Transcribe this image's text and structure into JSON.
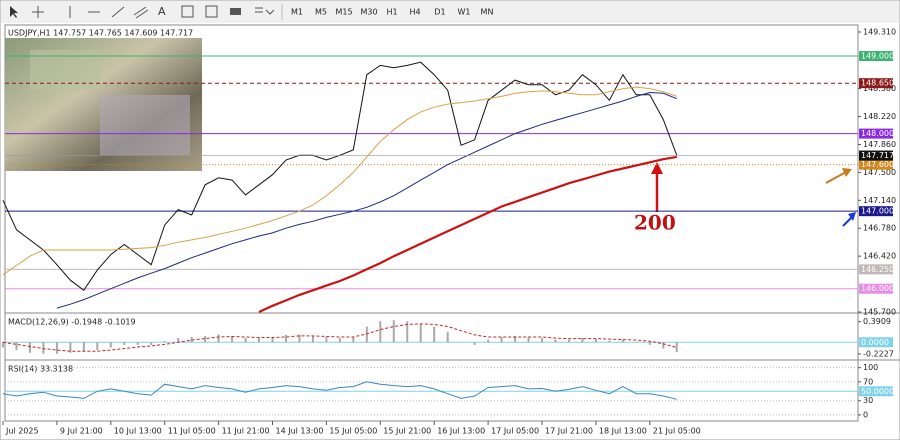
{
  "toolbar": {
    "timeframes": [
      "M1",
      "M5",
      "M15",
      "M30",
      "H1",
      "H4",
      "D1",
      "W1",
      "MN"
    ]
  },
  "chart_data": [
    {
      "type": "line",
      "header": "USDJPY,H1  147.757 147.765 147.609 147.717",
      "categories": [
        "Jul 2025",
        null,
        null,
        null,
        "9 Jul 21:00",
        null,
        null,
        null,
        "10 Jul 13:00",
        null,
        null,
        null,
        "11 Jul 05:00",
        null,
        null,
        null,
        "11 Jul 21:00",
        null,
        null,
        null,
        "14 Jul 13:00",
        null,
        null,
        null,
        "15 Jul 05:00",
        null,
        null,
        null,
        "15 Jul 21:00",
        null,
        null,
        null,
        "16 Jul 13:00",
        null,
        null,
        null,
        "17 Jul 05:00",
        null,
        null,
        null,
        "17 Jul 21:00",
        null,
        null,
        null,
        "18 Jul 13:00",
        null,
        null,
        null,
        "21 Jul 05:00",
        null,
        null
      ],
      "series": [
        {
          "color": "#111111",
          "values": [
            147.14,
            146.76,
            146.63,
            146.5,
            146.31,
            146.11,
            145.98,
            146.24,
            146.44,
            146.57,
            146.44,
            146.31,
            146.82,
            147.02,
            146.95,
            147.34,
            147.43,
            147.4,
            147.21,
            147.34,
            147.47,
            147.66,
            147.72,
            147.72,
            147.66,
            147.72,
            147.79,
            148.76,
            148.88,
            148.85,
            148.88,
            148.92,
            148.76,
            148.56,
            147.85,
            147.92,
            148.43,
            148.56,
            148.69,
            148.63,
            148.63,
            148.5,
            148.56,
            148.76,
            148.63,
            148.43,
            148.76,
            148.5,
            148.5,
            148.18,
            147.72
          ]
        },
        {
          "color": "#d9a04a",
          "values": [
            146.18,
            146.3,
            146.42,
            146.5,
            146.5,
            146.5,
            146.5,
            146.5,
            146.5,
            146.51,
            146.52,
            146.53,
            146.56,
            146.6,
            146.63,
            146.66,
            146.7,
            146.74,
            146.78,
            146.83,
            146.88,
            146.94,
            147.0,
            147.08,
            147.2,
            147.34,
            147.5,
            147.7,
            147.9,
            148.05,
            148.18,
            148.28,
            148.34,
            148.38,
            148.4,
            148.42,
            148.45,
            148.48,
            148.52,
            148.54,
            148.55,
            148.54,
            148.52,
            148.5,
            148.5,
            148.54,
            148.58,
            148.6,
            148.58,
            148.54,
            148.48
          ]
        },
        {
          "color": "#1c2a80",
          "values": [
            null,
            null,
            null,
            null,
            145.75,
            145.8,
            145.86,
            145.93,
            146.0,
            146.07,
            146.14,
            146.2,
            146.26,
            146.33,
            146.4,
            146.46,
            146.52,
            146.58,
            146.63,
            146.68,
            146.72,
            146.78,
            146.83,
            146.87,
            146.92,
            146.96,
            147.0,
            147.05,
            147.12,
            147.2,
            147.3,
            147.4,
            147.5,
            147.6,
            147.68,
            147.76,
            147.84,
            147.92,
            148.0,
            148.06,
            148.12,
            148.17,
            148.22,
            148.27,
            148.32,
            148.37,
            148.42,
            148.48,
            148.53,
            148.52,
            148.45
          ]
        },
        {
          "color": "#cc1111",
          "values": [
            null,
            null,
            null,
            null,
            null,
            null,
            null,
            null,
            null,
            null,
            null,
            null,
            null,
            null,
            null,
            null,
            null,
            null,
            null,
            145.7,
            145.78,
            145.85,
            145.92,
            145.98,
            146.04,
            146.1,
            146.17,
            146.25,
            146.33,
            146.42,
            146.5,
            146.58,
            146.66,
            146.74,
            146.82,
            146.9,
            146.98,
            147.06,
            147.12,
            147.18,
            147.24,
            147.3,
            147.36,
            147.41,
            147.46,
            147.51,
            147.55,
            147.59,
            147.63,
            147.67,
            147.7
          ]
        }
      ],
      "ylim": [
        145.7,
        149.31
      ],
      "yticks": [
        {
          "value": 149.31,
          "label": "149.310"
        },
        {
          "value": 148.58,
          "label": "148.580"
        },
        {
          "value": 148.22,
          "label": "148.220"
        },
        {
          "value": 147.86,
          "label": "147.860"
        },
        {
          "value": 147.5,
          "label": "147.500"
        },
        {
          "value": 147.14,
          "label": "147.140"
        },
        {
          "value": 146.78,
          "label": "146.780"
        },
        {
          "value": 146.42,
          "label": "146.420"
        },
        {
          "value": 145.7,
          "label": "145.700"
        }
      ],
      "levels": [
        {
          "value": 149.0,
          "label": "149.000",
          "color": "#3cb371",
          "style": "solid"
        },
        {
          "value": 148.65,
          "label": "148.650",
          "color": "#8b1a1a",
          "style": "dashed"
        },
        {
          "value": 148.0,
          "label": "148.000",
          "color": "#8a2be2",
          "style": "solid"
        },
        {
          "value": 147.6,
          "label": "147.600",
          "color": "#d2881e",
          "style": "dotted"
        },
        {
          "value": 147.0,
          "label": "147.000",
          "color": "#1a1a8c",
          "style": "solid"
        },
        {
          "value": 146.25,
          "label": "146.250",
          "color": "#c0b8b8",
          "style": "solid"
        },
        {
          "value": 146.0,
          "label": "146.000",
          "color": "#e88de8",
          "style": "solid"
        }
      ],
      "current_price": {
        "value": 147.717,
        "label": "147.717"
      },
      "annotation": "200"
    },
    {
      "type": "bar",
      "title": "MACD(12,26,9) -0.1948 -0.1019",
      "color": "#a8a8a8",
      "values": [
        -0.1,
        -0.15,
        -0.2,
        -0.22,
        -0.22,
        -0.2,
        -0.18,
        -0.15,
        -0.1,
        -0.05,
        -0.05,
        -0.05,
        0.02,
        0.08,
        0.1,
        0.12,
        0.15,
        0.12,
        0.08,
        0.08,
        0.1,
        0.14,
        0.15,
        0.12,
        0.1,
        0.08,
        0.1,
        0.3,
        0.4,
        0.42,
        0.4,
        0.35,
        0.3,
        0.2,
        0.0,
        -0.05,
        0.05,
        0.1,
        0.12,
        0.1,
        0.08,
        0.05,
        0.05,
        0.08,
        0.06,
        0.03,
        0.05,
        0.0,
        -0.05,
        -0.12,
        -0.19
      ],
      "signal": {
        "color": "#d02020",
        "values": [
          0.0,
          -0.04,
          -0.08,
          -0.12,
          -0.15,
          -0.17,
          -0.17,
          -0.17,
          -0.15,
          -0.12,
          -0.09,
          -0.07,
          -0.04,
          0.0,
          0.04,
          0.07,
          0.1,
          0.11,
          0.1,
          0.09,
          0.09,
          0.1,
          0.12,
          0.12,
          0.11,
          0.1,
          0.1,
          0.16,
          0.24,
          0.3,
          0.34,
          0.35,
          0.34,
          0.3,
          0.22,
          0.14,
          0.1,
          0.1,
          0.1,
          0.1,
          0.1,
          0.08,
          0.07,
          0.07,
          0.07,
          0.06,
          0.05,
          0.04,
          0.02,
          -0.03,
          -0.1
        ]
      },
      "ylim": [
        -0.3,
        0.5
      ],
      "yticks": [
        0.3909,
        -0.2227
      ],
      "levels": [
        {
          "value": 0,
          "label": "0.0000",
          "color": "#7fd3e8",
          "style": "solid"
        }
      ]
    },
    {
      "type": "line",
      "title": "RSI(14) 33.3138",
      "color": "#3a86c0",
      "values": [
        45,
        40,
        45,
        48,
        40,
        38,
        35,
        50,
        55,
        50,
        45,
        42,
        65,
        60,
        55,
        62,
        58,
        55,
        48,
        55,
        58,
        62,
        60,
        55,
        52,
        58,
        60,
        70,
        65,
        62,
        60,
        62,
        55,
        45,
        35,
        40,
        58,
        60,
        62,
        55,
        56,
        50,
        54,
        60,
        52,
        45,
        60,
        45,
        45,
        40,
        33
      ],
      "ylim": [
        -15,
        112
      ],
      "yticks": [
        100,
        70,
        30,
        0
      ],
      "grid": true,
      "levels": [
        {
          "value": 50,
          "label": "50.0000",
          "color": "#7fd3e8",
          "style": "solid"
        }
      ]
    }
  ]
}
